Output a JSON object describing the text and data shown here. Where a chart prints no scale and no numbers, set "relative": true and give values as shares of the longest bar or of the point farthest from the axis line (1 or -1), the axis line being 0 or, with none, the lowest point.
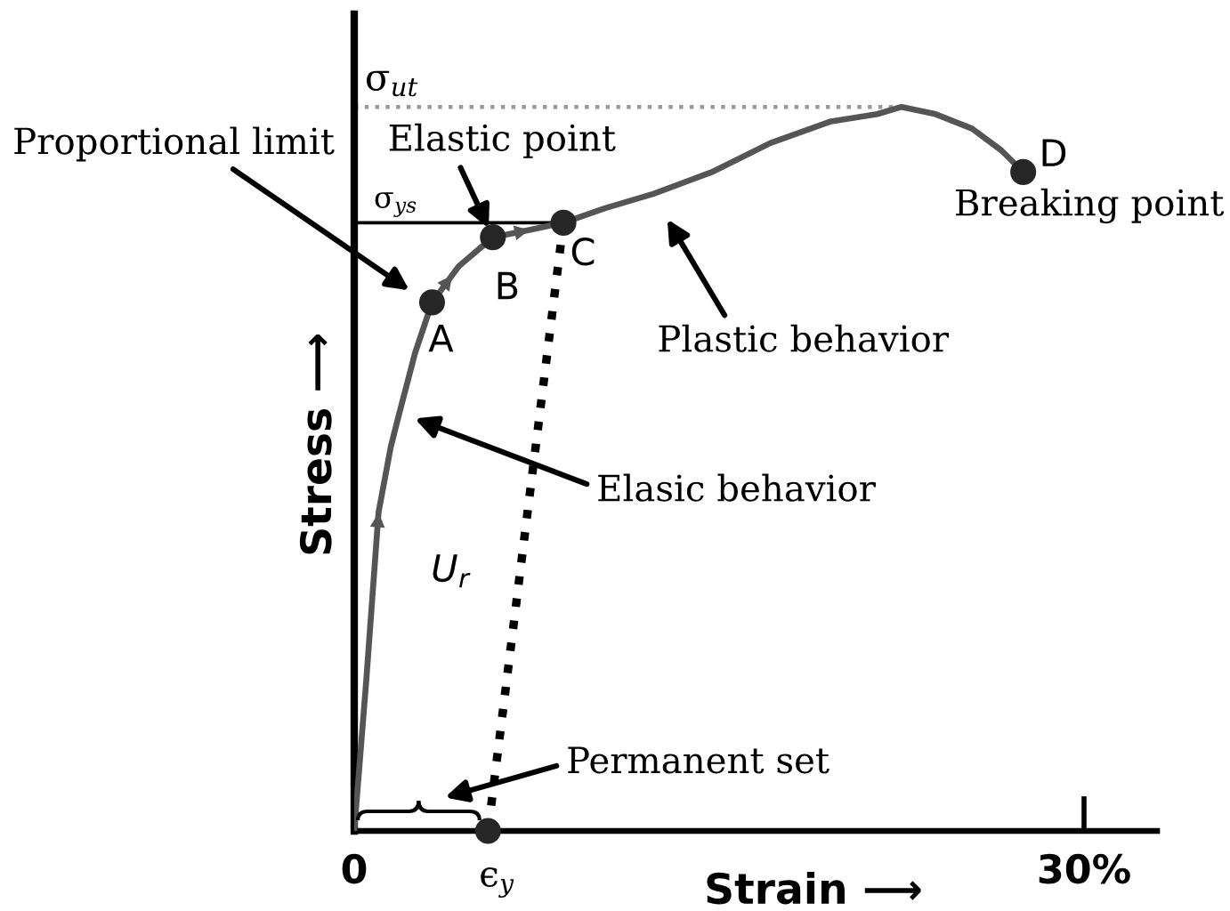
{
  "chart_data": {
    "type": "line",
    "relative": true,
    "xlabel": "Strain ⟶",
    "ylabel": "Stress ⟶",
    "xlim": [
      0,
      33
    ],
    "xticks": [
      0,
      {
        "value": 30,
        "label": "30%"
      }
    ],
    "tick_labels": "x",
    "series": [
      {
        "color": "#555555",
        "marker": "none",
        "line_style": "solid",
        "x": [
          0,
          0.5,
          1.0,
          1.5,
          1.8,
          2.5,
          3.2,
          4.3,
          5.7,
          7.2,
          8.6,
          10.3,
          12.3,
          14.7,
          17.1,
          19.6,
          21.5,
          22.5,
          23.9,
          25.4,
          26.6,
          27.5
        ],
        "values": [
          0,
          0.21,
          0.44,
          0.53,
          0.57,
          0.66,
          0.73,
          0.78,
          0.82,
          0.83,
          0.84,
          0.86,
          0.88,
          0.91,
          0.95,
          0.98,
          0.99,
          1.0,
          0.99,
          0.97,
          0.94,
          0.91
        ]
      },
      {
        "color": "#000000",
        "marker": "none",
        "line_style": "dotted",
        "x": [
          8.6,
          5.5
        ],
        "values": [
          0.84,
          0
        ]
      },
      {
        "type": "scatter",
        "color": "#262626",
        "marker": "circle",
        "x": [
          3.2,
          5.7,
          8.6,
          27.5,
          5.5
        ],
        "values": [
          0.73,
          0.82,
          0.84,
          0.91,
          0
        ]
      }
    ],
    "ref_lines": [
      {
        "axis": "y",
        "value": 1.0,
        "label": "σ$_{ut}$",
        "color": "#999999",
        "line_style": "dotted"
      },
      {
        "axis": "y",
        "value": 0.84,
        "label": "σ$_{ys}$",
        "color": "#000000",
        "line_style": "solid"
      }
    ],
    "annotations": [
      "Proportional limit",
      {
        "text": "Elastic point",
        "x": 5.7,
        "y": 0.82
      },
      "Plastic behavior",
      "Elasic behavior",
      "Permanent set",
      {
        "text": "Breaking point",
        "x": 27.5,
        "y": 0.91
      },
      {
        "text": "D",
        "x": 27.5,
        "y": 0.91
      },
      {
        "text": "A",
        "x": 3.2,
        "y": 0.73
      },
      {
        "text": "B",
        "x": 5.7,
        "y": 0.82
      },
      {
        "text": "C",
        "x": 8.6,
        "y": 0.84
      },
      "U$_{r}$",
      {
        "text": "ϵ$_{y}$",
        "x": 5.5,
        "y": 0
      }
    ]
  }
}
